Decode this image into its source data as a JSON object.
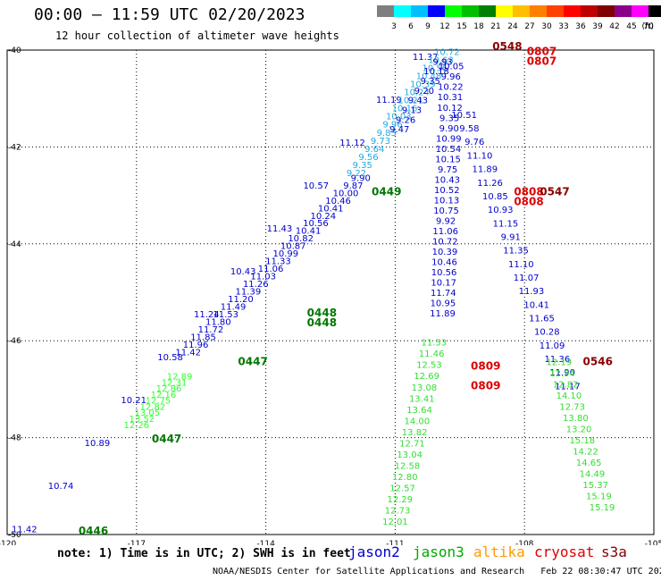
{
  "header": {
    "title": "00:00 – 11:59 UTC 02/20/2023",
    "subtitle": "12 hour collection of altimeter wave heights"
  },
  "colorbar": {
    "labels": [
      "3",
      "6",
      "9",
      "12",
      "15",
      "18",
      "21",
      "24",
      "27",
      "30",
      "33",
      "36",
      "39",
      "42",
      "45",
      "70"
    ],
    "unit": "(ft)",
    "colors": [
      "#7f7f7f",
      "#00ffff",
      "#00bfff",
      "#0000ff",
      "#00ff00",
      "#00bf00",
      "#008000",
      "#ffff00",
      "#ffbf00",
      "#ff8000",
      "#ff4000",
      "#ff0000",
      "#bf0000",
      "#800000",
      "#8b008b",
      "#ff00ff",
      "#000000"
    ]
  },
  "map": {
    "lon_range": [
      -120,
      -105
    ],
    "lat_range": [
      -50,
      -40
    ],
    "lon_ticks": [
      "-120",
      "-117",
      "-114",
      "-111",
      "-108",
      "-105"
    ],
    "lat_ticks": [
      "-40",
      "-42",
      "-44",
      "-46",
      "-48",
      "-50"
    ]
  },
  "legend": {
    "note": "note: 1) Time is in UTC; 2) SWH is in feet",
    "satellites": [
      {
        "name": "jason2",
        "color": "#0000cc"
      },
      {
        "name": "jason3",
        "color": "#00aa00"
      },
      {
        "name": "altika",
        "color": "#ff9900"
      },
      {
        "name": "cryosat",
        "color": "#dd0000"
      },
      {
        "name": "s3a",
        "color": "#880000"
      }
    ],
    "credit": "NOAA/NESDIS Center for Satellite Applications and Research",
    "timestamp": "Feb 22 08:30:47 UTC 2023"
  },
  "times": [
    {
      "text": "0548",
      "lon": -108.4,
      "lat": -40.0,
      "color": "#880000"
    },
    {
      "text": "0807",
      "lon": -107.6,
      "lat": -40.1,
      "color": "#dd0000"
    },
    {
      "text": "0807",
      "lon": -107.6,
      "lat": -40.3,
      "color": "#dd0000"
    },
    {
      "text": "0449",
      "lon": -111.2,
      "lat": -43.0,
      "color": "#007700"
    },
    {
      "text": "0808",
      "lon": -107.9,
      "lat": -43.0,
      "color": "#dd0000"
    },
    {
      "text": "0547",
      "lon": -107.3,
      "lat": -43.0,
      "color": "#880000"
    },
    {
      "text": "0808",
      "lon": -107.9,
      "lat": -43.2,
      "color": "#dd0000"
    },
    {
      "text": "0448",
      "lon": -112.7,
      "lat": -45.5,
      "color": "#007700"
    },
    {
      "text": "0448",
      "lon": -112.7,
      "lat": -45.7,
      "color": "#007700"
    },
    {
      "text": "0447",
      "lon": -114.3,
      "lat": -46.5,
      "color": "#007700"
    },
    {
      "text": "0809",
      "lon": -108.9,
      "lat": -46.6,
      "color": "#dd0000"
    },
    {
      "text": "0546",
      "lon": -106.3,
      "lat": -46.5,
      "color": "#880000"
    },
    {
      "text": "0809",
      "lon": -108.9,
      "lat": -47.0,
      "color": "#dd0000"
    },
    {
      "text": "0447",
      "lon": -116.3,
      "lat": -48.1,
      "color": "#007700"
    },
    {
      "text": "0446",
      "lon": -118.0,
      "lat": -50.0,
      "color": "#007700"
    }
  ],
  "tracks": [
    {
      "name": "jason2",
      "color": "#0000cc",
      "lon0": -119.6,
      "lat0": -49.95,
      "lon1": -110.3,
      "lat1": -40.2,
      "values": [
        "11.42",
        "10.74",
        "10.89",
        "10.21",
        "10.58",
        "11.24",
        "10.43",
        "11.43",
        "10.57",
        "11.12",
        "11.19",
        "11.37"
      ]
    },
    {
      "name": "jason3",
      "color": "#33ff33",
      "lon0": -117.0,
      "lat0": -47.8,
      "lon1": -116.0,
      "lat1": -46.8,
      "values": [
        "12.26",
        "13.52",
        "13.05",
        "12.82",
        "12.75",
        "12.16",
        "12.86",
        "12.31",
        "12.89"
      ]
    },
    {
      "name": "jason2",
      "color": "#0000cc",
      "lon0": -115.8,
      "lat0": -46.3,
      "lon1": -111.8,
      "lat1": -42.7,
      "values": [
        "11.42",
        "11.96",
        "11.85",
        "11.72",
        "11.80",
        "11.53",
        "11.49",
        "11.20",
        "11.39",
        "11.26",
        "11.03",
        "11.06",
        "11.33",
        "10.99",
        "10.87",
        "10.82",
        "10.41",
        "10.56",
        "10.24",
        "10.41",
        "10.46",
        "10.00",
        "9.87",
        "9.90"
      ]
    },
    {
      "name": "jason2-cyan",
      "color": "#22aadd",
      "lon0": -111.9,
      "lat0": -42.6,
      "lon1": -109.8,
      "lat1": -40.1,
      "values": [
        "9.22",
        "9.35",
        "9.56",
        "9.64",
        "9.73",
        "9.83",
        "9.96",
        "10.03",
        "10.16",
        "10.21",
        "10.24",
        "10.39",
        "10.48",
        "10.56",
        "10.63",
        "10.72"
      ]
    },
    {
      "name": "jason2-dark",
      "color": "#0000cc",
      "lon0": -110.9,
      "lat0": -41.7,
      "lon1": -109.9,
      "lat1": -40.3,
      "values": [
        "9.47",
        "9.26",
        "9.13",
        "9.43",
        "9.20",
        "9.35",
        "10.18",
        "9.93"
      ]
    },
    {
      "name": "jason2-desc",
      "color": "#0000cc",
      "lon0": -109.7,
      "lat0": -40.4,
      "lon1": -109.9,
      "lat1": -45.5,
      "values": [
        "10.05",
        "9.96",
        "10.22",
        "10.31",
        "10.12",
        "9.35",
        "9.90",
        "10.99",
        "10.54",
        "10.15",
        "9.75",
        "10.43",
        "10.52",
        "10.13",
        "10.75",
        "9.92",
        "11.06",
        "10.72",
        "10.39",
        "10.46",
        "10.56",
        "10.17",
        "11.74",
        "10.95",
        "11.89"
      ]
    },
    {
      "name": "jason2-desc2",
      "color": "#0000cc",
      "lon0": -109.4,
      "lat0": -41.4,
      "lon1": -107.0,
      "lat1": -47.0,
      "values": [
        "10.51",
        "9.58",
        "9.76",
        "11.10",
        "11.89",
        "11.26",
        "10.85",
        "10.93",
        "11.15",
        "9.91",
        "11.35",
        "11.10",
        "11.07",
        "11.93",
        "10.41",
        "11.65",
        "10.28",
        "11.09",
        "11.36",
        "11.90",
        "11.17"
      ]
    },
    {
      "name": "jason3-green",
      "color": "#33dd33",
      "lon0": -110.1,
      "lat0": -46.1,
      "lon1": -111.0,
      "lat1": -49.8,
      "values": [
        "11.53",
        "11.46",
        "12.53",
        "12.69",
        "13.08",
        "13.41",
        "13.64",
        "14.00",
        "13.82",
        "12.71",
        "13.04",
        "12.58",
        "12.80",
        "12.57",
        "12.29",
        "12.73",
        "12.01"
      ]
    },
    {
      "name": "jason3-green2",
      "color": "#33dd33",
      "lon0": -107.2,
      "lat0": -46.5,
      "lon1": -106.2,
      "lat1": -49.5,
      "values": [
        "12.19",
        "12.94",
        "12.82",
        "14.10",
        "12.73",
        "13.80",
        "13.20",
        "15.18",
        "14.22",
        "14.65",
        "14.49",
        "15.37",
        "15.19",
        "15.19"
      ]
    }
  ]
}
